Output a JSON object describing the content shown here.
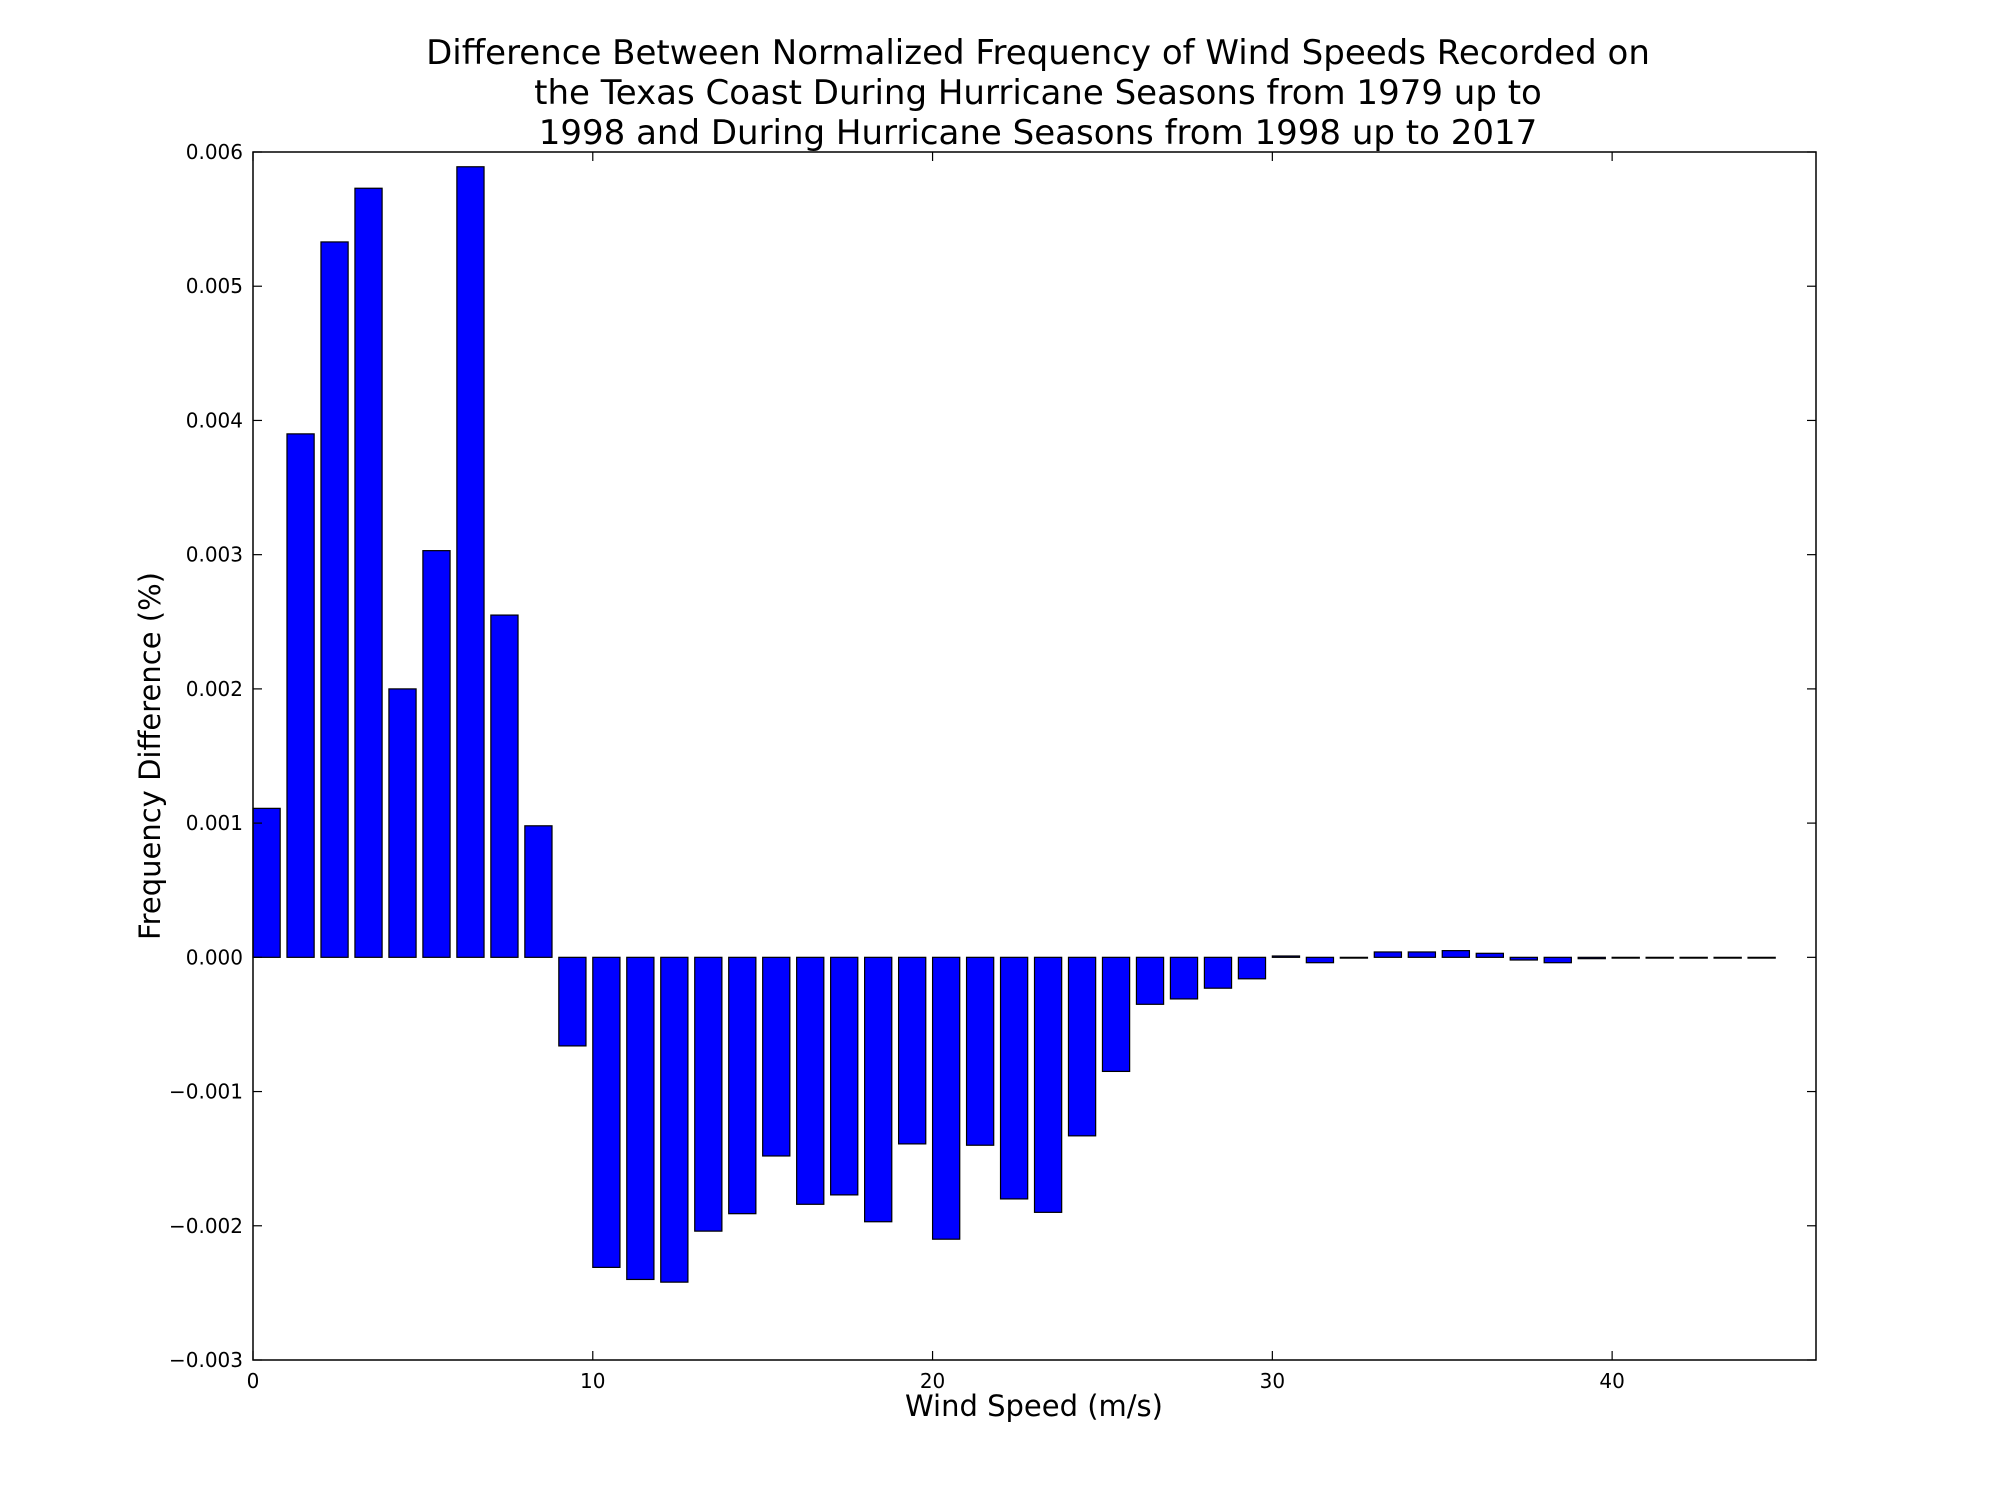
{
  "chart_data": {
    "type": "bar",
    "title_lines": [
      "Difference Between Normalized Frequency of Wind Speeds Recorded on",
      "the Texas Coast During Hurricane Seasons from 1979 up to",
      "1998 and During Hurricane Seasons from 1998 up to 2017"
    ],
    "xlabel": "Wind Speed (m/s)",
    "ylabel": "Frequency Difference (%)",
    "xlim": [
      0,
      46
    ],
    "ylim": [
      -0.003,
      0.006
    ],
    "xticks": [
      0,
      10,
      20,
      30,
      40
    ],
    "yticks": [
      -0.003,
      -0.002,
      -0.001,
      0.0,
      0.001,
      0.002,
      0.003,
      0.004,
      0.005,
      0.006
    ],
    "ytick_labels": [
      "−0.003",
      "−0.002",
      "−0.001",
      "0.000",
      "0.001",
      "0.002",
      "0.003",
      "0.004",
      "0.005",
      "0.006"
    ],
    "bar_width": 0.8,
    "bar_color": "#0000ff",
    "edge_color": "#000000",
    "grid": false,
    "x": [
      0,
      1,
      2,
      3,
      4,
      5,
      6,
      7,
      8,
      9,
      10,
      11,
      12,
      13,
      14,
      15,
      16,
      17,
      18,
      19,
      20,
      21,
      22,
      23,
      24,
      25,
      26,
      27,
      28,
      29,
      30,
      31,
      32,
      33,
      34,
      35,
      36,
      37,
      38,
      39,
      40,
      41,
      42,
      43,
      44
    ],
    "values": [
      0.00111,
      0.0039,
      0.00533,
      0.00573,
      0.002,
      0.00303,
      0.00589,
      0.00255,
      0.00098,
      -0.00066,
      -0.00231,
      -0.0024,
      -0.00242,
      -0.00204,
      -0.00191,
      -0.00148,
      -0.00184,
      -0.00177,
      -0.00197,
      -0.00139,
      -0.0021,
      -0.0014,
      -0.0018,
      -0.0019,
      -0.00133,
      -0.00085,
      -0.00035,
      -0.00031,
      -0.00023,
      -0.00016,
      1e-05,
      -4e-05,
      0.0,
      4e-05,
      4e-05,
      5e-05,
      3e-05,
      -2e-05,
      -4e-05,
      -1e-05,
      0.0,
      0.0,
      0.0,
      0.0,
      0.0
    ]
  }
}
